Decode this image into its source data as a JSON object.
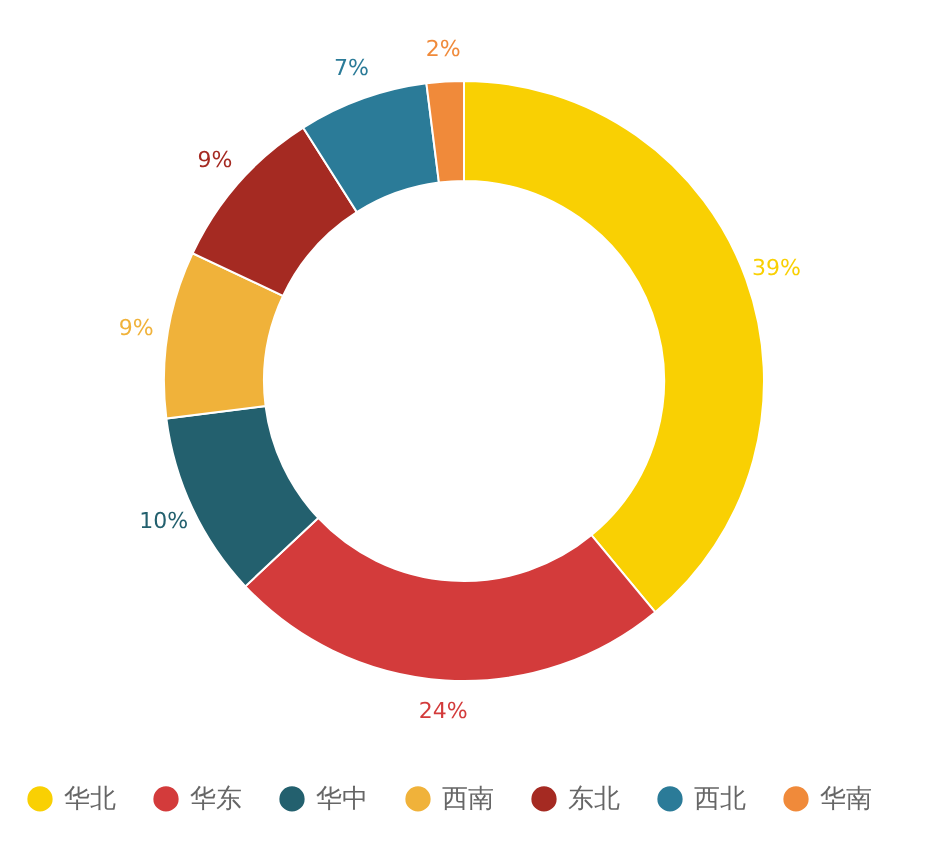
{
  "chart_data": {
    "type": "donut",
    "categories": [
      "华北",
      "华东",
      "华中",
      "西南",
      "东北",
      "西北",
      "华南"
    ],
    "values": [
      39,
      24,
      10,
      9,
      9,
      7,
      2
    ],
    "colors": [
      "#f9d003",
      "#d33b3b",
      "#23606e",
      "#f0b23a",
      "#a52a22",
      "#2b7b98",
      "#f08a3a"
    ],
    "value_labels": [
      "39%",
      "24%",
      "10%",
      "9%",
      "9%",
      "7%",
      "2%"
    ],
    "legend": "bottom"
  }
}
